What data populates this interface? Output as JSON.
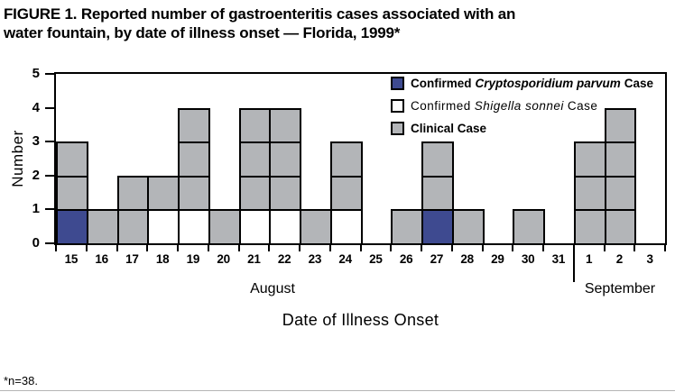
{
  "title": "FIGURE 1. Reported number of gastroenteritis cases associated with an\nwater fountain, by date of illness onset — Florida, 1999*",
  "footnote": "*n=38.",
  "y_axis": {
    "label": "Number"
  },
  "x_axis": {
    "title": "Date of Illness Onset",
    "month_labels": [
      "August",
      "September"
    ]
  },
  "legend": {
    "items": [
      {
        "key": "crypto",
        "prefix": "Confirmed",
        "species": "Cryptosporidium parvum",
        "suffix": "Case",
        "color": "#3E4A90"
      },
      {
        "key": "shigella",
        "prefix": "Confirmed",
        "species": "Shigella sonnei",
        "suffix": "Case",
        "color": "#FFFFFF"
      },
      {
        "key": "clinical",
        "prefix": "Clinical Case",
        "species": "",
        "suffix": "",
        "color": "#B3B5B8"
      }
    ]
  },
  "chart_data": {
    "type": "bar",
    "stacked": true,
    "unit_squares": true,
    "title": "Reported number of gastroenteritis cases associated with an water fountain, by date of illness onset — Florida, 1999",
    "xlabel": "Date of Illness Onset",
    "ylabel": "Number",
    "ylim": [
      0,
      5
    ],
    "yticks": [
      0,
      1,
      2,
      3,
      4,
      5
    ],
    "total_n": 38,
    "categories": [
      "15",
      "16",
      "17",
      "18",
      "19",
      "20",
      "21",
      "22",
      "23",
      "24",
      "25",
      "26",
      "27",
      "28",
      "29",
      "30",
      "31",
      "1",
      "2",
      "3"
    ],
    "month_groups": [
      {
        "label": "August",
        "start": 0,
        "end": 16
      },
      {
        "label": "September",
        "start": 17,
        "end": 19
      }
    ],
    "series": [
      {
        "name": "Confirmed Cryptosporidium parvum Case",
        "key": "crypto",
        "values": [
          1,
          0,
          0,
          0,
          0,
          0,
          0,
          0,
          0,
          0,
          0,
          0,
          1,
          0,
          0,
          0,
          0,
          0,
          0,
          0
        ]
      },
      {
        "name": "Confirmed Shigella sonnei Case",
        "key": "shigella",
        "values": [
          0,
          0,
          0,
          1,
          1,
          0,
          1,
          1,
          0,
          1,
          0,
          0,
          0,
          0,
          0,
          0,
          0,
          0,
          0,
          0
        ]
      },
      {
        "name": "Clinical Case",
        "key": "clinical",
        "values": [
          2,
          1,
          2,
          1,
          3,
          1,
          3,
          3,
          1,
          2,
          0,
          1,
          2,
          1,
          0,
          1,
          0,
          3,
          4,
          0
        ]
      }
    ],
    "stacks": [
      [
        "crypto",
        "clinical",
        "clinical"
      ],
      [
        "clinical"
      ],
      [
        "clinical",
        "clinical"
      ],
      [
        "shigella",
        "clinical"
      ],
      [
        "shigella",
        "clinical",
        "clinical",
        "clinical"
      ],
      [
        "clinical"
      ],
      [
        "shigella",
        "clinical",
        "clinical",
        "clinical"
      ],
      [
        "shigella",
        "clinical",
        "clinical",
        "clinical"
      ],
      [
        "clinical"
      ],
      [
        "shigella",
        "clinical",
        "clinical"
      ],
      [],
      [
        "clinical"
      ],
      [
        "crypto",
        "clinical",
        "clinical"
      ],
      [
        "clinical"
      ],
      [],
      [
        "clinical"
      ],
      [],
      [
        "clinical",
        "clinical",
        "clinical"
      ],
      [
        "clinical",
        "clinical",
        "clinical",
        "clinical"
      ],
      []
    ],
    "colors": {
      "crypto": "#3E4A90",
      "shigella": "#FFFFFF",
      "clinical": "#B3B5B8"
    },
    "legend_position": "top-right",
    "grid": false
  }
}
